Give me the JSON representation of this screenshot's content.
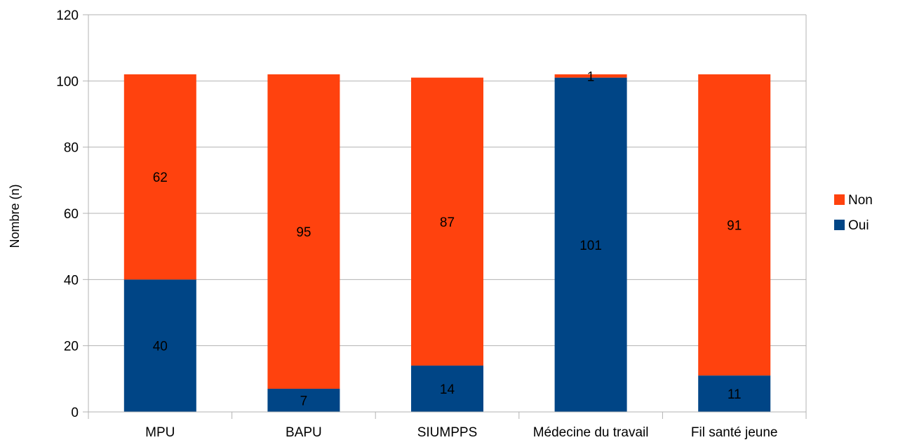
{
  "chart_data": {
    "type": "bar",
    "stacked": true,
    "categories": [
      "MPU",
      "BAPU",
      "SIUMPPS",
      "Médecine du travail",
      "Fil santé jeune"
    ],
    "series": [
      {
        "name": "Oui",
        "color": "#004586",
        "values": [
          40,
          7,
          14,
          101,
          11
        ]
      },
      {
        "name": "Non",
        "color": "#ff420e",
        "values": [
          62,
          95,
          87,
          1,
          91
        ]
      }
    ],
    "title": "",
    "xlabel": "",
    "ylabel": "Nombre (n)",
    "ylim": [
      0,
      120
    ],
    "yticks": [
      0,
      20,
      40,
      60,
      80,
      100,
      120
    ],
    "grid": true,
    "legend_position": "right",
    "legend_order": [
      "Non",
      "Oui"
    ],
    "data_labels": true
  }
}
